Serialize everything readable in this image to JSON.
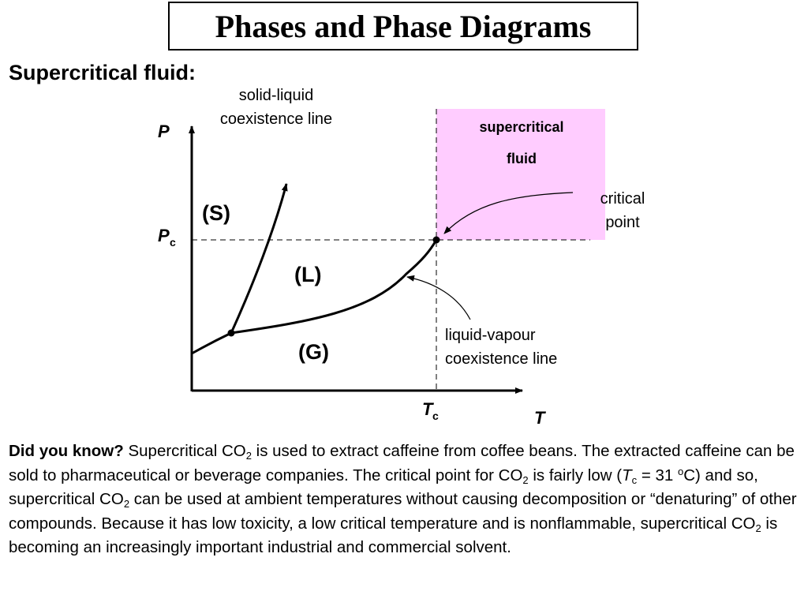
{
  "title": "Phases and Phase Diagrams",
  "heading": "Supercritical fluid:",
  "diagram": {
    "axis_y": "P",
    "axis_x": "T",
    "pc_main": "P",
    "pc_sub": "c",
    "tc_main": "T",
    "tc_sub": "c",
    "region_solid": "(S)",
    "region_liquid": "(L)",
    "region_gas": "(G)",
    "supercritical_line1": "supercritical",
    "supercritical_line2": "fluid",
    "supercritical_color": "#FFCCFF",
    "solid_liquid_line1": "solid-liquid",
    "solid_liquid_line2": "coexistence line",
    "critical_line1": "critical",
    "critical_line2": "point",
    "liquid_vapour_line1": "liquid-vapour",
    "liquid_vapour_line2": "coexistence line"
  },
  "paragraph": {
    "lead": "Did you know?",
    "s1": " Supercritical CO",
    "sub1": "2",
    "s2": " is used to extract caffeine from coffee beans. The extracted caffeine can be sold to pharmaceutical or beverage companies.  The critical point for CO",
    "sub2": "2",
    "s3": " is fairly low (",
    "tc_t": "T",
    "tc_c": "c",
    "s4": " = 31 ",
    "deg_o": "o",
    "s5": "C) and so, supercritical CO",
    "sub3": "2",
    "s6": " can be used at ambient temperatures without causing decomposition or “denaturing” of other compounds. Because it has low toxicity, a low critical temperature and is nonflammable, supercritical CO",
    "sub4": "2",
    "s7": " is becoming an increasingly important industrial and commercial solvent."
  }
}
